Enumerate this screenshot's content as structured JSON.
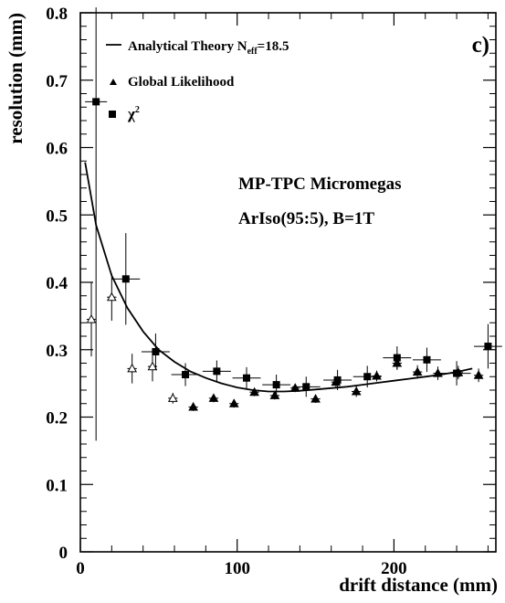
{
  "chart_data": {
    "type": "scatter",
    "panel_label": "c)",
    "xlabel": "drift distance (mm)",
    "ylabel": "resolution (mm)",
    "xlim": [
      0,
      265
    ],
    "ylim": [
      0,
      0.8
    ],
    "x_ticks": [
      0,
      100,
      200
    ],
    "x_tick_labels": [
      "0",
      "100",
      "200"
    ],
    "y_ticks": [
      0,
      0.1,
      0.2,
      0.3,
      0.4,
      0.5,
      0.6,
      0.7,
      0.8
    ],
    "y_tick_labels": [
      "0",
      "0.1",
      "0.2",
      "0.3",
      "0.4",
      "0.5",
      "0.6",
      "0.7",
      "0.8"
    ],
    "grid": false,
    "legend": {
      "position": "top-left",
      "entries": [
        {
          "marker": "line",
          "label": "Analytical Theory N",
          "subscript": "eff",
          "suffix": "=18.5"
        },
        {
          "marker": "triangle",
          "label": "Global Likelihood"
        },
        {
          "marker": "square",
          "label": "χ",
          "superscript": "2"
        }
      ]
    },
    "annotations": [
      "MP-TPC Micromegas",
      "ArIso(95:5), B=1T"
    ],
    "series": [
      {
        "name": "Analytical Theory N_eff=18.5",
        "kind": "curve",
        "x": [
          3,
          10,
          20,
          30,
          40,
          50,
          60,
          70,
          80,
          90,
          100,
          110,
          120,
          130,
          140,
          150,
          160,
          170,
          180,
          190,
          200,
          210,
          220,
          230,
          240,
          250
        ],
        "y": [
          0.578,
          0.485,
          0.41,
          0.362,
          0.327,
          0.3,
          0.282,
          0.268,
          0.258,
          0.25,
          0.244,
          0.24,
          0.238,
          0.238,
          0.239,
          0.241,
          0.243,
          0.245,
          0.248,
          0.251,
          0.254,
          0.257,
          0.26,
          0.263,
          0.267,
          0.272
        ]
      },
      {
        "name": "Global Likelihood",
        "kind": "points",
        "marker": "triangle",
        "points": [
          {
            "x": 7,
            "y": 0.345,
            "xerr": 3,
            "yerr": 0.055,
            "hollow": true
          },
          {
            "x": 20,
            "y": 0.378,
            "xerr": 3,
            "yerr": 0.035,
            "hollow": true
          },
          {
            "x": 33,
            "y": 0.272,
            "xerr": 3,
            "yerr": 0.022,
            "hollow": true
          },
          {
            "x": 46,
            "y": 0.275,
            "xerr": 3,
            "yerr": 0.022,
            "hollow": true
          },
          {
            "x": 59,
            "y": 0.228,
            "xerr": 3,
            "yerr": 0.008,
            "hollow": true
          },
          {
            "x": 72,
            "y": 0.215,
            "xerr": 3,
            "yerr": 0.006
          },
          {
            "x": 85,
            "y": 0.228,
            "xerr": 3,
            "yerr": 0.006
          },
          {
            "x": 98,
            "y": 0.22,
            "xerr": 3,
            "yerr": 0.006
          },
          {
            "x": 111,
            "y": 0.237,
            "xerr": 3,
            "yerr": 0.006
          },
          {
            "x": 124,
            "y": 0.232,
            "xerr": 3,
            "yerr": 0.006
          },
          {
            "x": 137,
            "y": 0.243,
            "xerr": 3,
            "yerr": 0.006
          },
          {
            "x": 150,
            "y": 0.227,
            "xerr": 3,
            "yerr": 0.006
          },
          {
            "x": 163,
            "y": 0.252,
            "xerr": 3,
            "yerr": 0.008
          },
          {
            "x": 176,
            "y": 0.238,
            "xerr": 3,
            "yerr": 0.008
          },
          {
            "x": 189,
            "y": 0.261,
            "xerr": 3,
            "yerr": 0.008
          },
          {
            "x": 202,
            "y": 0.28,
            "xerr": 3,
            "yerr": 0.01
          },
          {
            "x": 215,
            "y": 0.267,
            "xerr": 3,
            "yerr": 0.01
          },
          {
            "x": 228,
            "y": 0.265,
            "xerr": 3,
            "yerr": 0.01
          },
          {
            "x": 241,
            "y": 0.266,
            "xerr": 3,
            "yerr": 0.01
          },
          {
            "x": 254,
            "y": 0.262,
            "xerr": 3,
            "yerr": 0.01
          }
        ]
      },
      {
        "name": "χ2",
        "kind": "points",
        "marker": "square",
        "points": [
          {
            "x": 10,
            "y": 0.668,
            "xerr": 7,
            "yerr_low": 0.503,
            "yerr_high": 0.14
          },
          {
            "x": 29,
            "y": 0.405,
            "xerr": 9,
            "yerr": 0.068
          },
          {
            "x": 48,
            "y": 0.297,
            "xerr": 9,
            "yerr": 0.027
          },
          {
            "x": 67,
            "y": 0.263,
            "xerr": 9,
            "yerr": 0.017
          },
          {
            "x": 87,
            "y": 0.268,
            "xerr": 9,
            "yerr": 0.016
          },
          {
            "x": 106,
            "y": 0.258,
            "xerr": 9,
            "yerr": 0.016
          },
          {
            "x": 125,
            "y": 0.248,
            "xerr": 9,
            "yerr": 0.015
          },
          {
            "x": 144,
            "y": 0.245,
            "xerr": 9,
            "yerr": 0.015
          },
          {
            "x": 164,
            "y": 0.255,
            "xerr": 9,
            "yerr": 0.015
          },
          {
            "x": 183,
            "y": 0.26,
            "xerr": 9,
            "yerr": 0.016
          },
          {
            "x": 202,
            "y": 0.288,
            "xerr": 9,
            "yerr": 0.017
          },
          {
            "x": 221,
            "y": 0.285,
            "xerr": 9,
            "yerr": 0.018
          },
          {
            "x": 240,
            "y": 0.265,
            "xerr": 9,
            "yerr": 0.018
          },
          {
            "x": 260,
            "y": 0.305,
            "xerr": 9,
            "yerr": 0.033
          }
        ]
      }
    ]
  }
}
